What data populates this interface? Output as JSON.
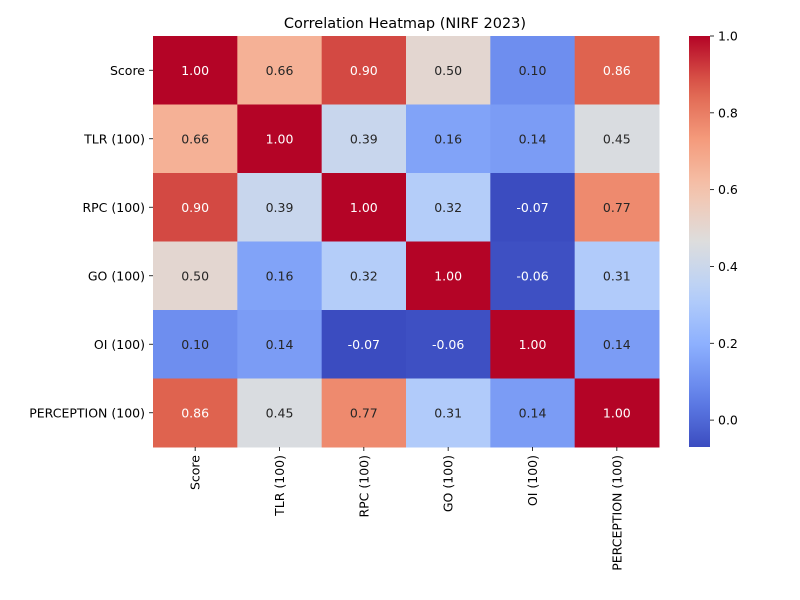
{
  "chart_data": {
    "type": "heatmap",
    "title": "Correlation Heatmap (NIRF 2023)",
    "xlabel": "",
    "ylabel": "",
    "row_labels": [
      "Score",
      "TLR (100)",
      "RPC (100)",
      "GO (100)",
      "OI (100)",
      "PERCEPTION (100)"
    ],
    "col_labels": [
      "Score",
      "TLR (100)",
      "RPC (100)",
      "GO (100)",
      "OI (100)",
      "PERCEPTION (100)"
    ],
    "values": [
      [
        1.0,
        0.66,
        0.9,
        0.5,
        0.1,
        0.86
      ],
      [
        0.66,
        1.0,
        0.39,
        0.16,
        0.14,
        0.45
      ],
      [
        0.9,
        0.39,
        1.0,
        0.32,
        -0.07,
        0.77
      ],
      [
        0.5,
        0.16,
        0.32,
        1.0,
        -0.06,
        0.31
      ],
      [
        0.1,
        0.14,
        -0.07,
        -0.06,
        1.0,
        0.14
      ],
      [
        0.86,
        0.45,
        0.77,
        0.31,
        0.14,
        1.0
      ]
    ],
    "annotation_format": "0.00",
    "colormap": "coolwarm",
    "color_range": [
      -0.07,
      1.0
    ],
    "colorbar_ticks": [
      "0.0",
      "0.2",
      "0.4",
      "0.6",
      "0.8",
      "1.0"
    ],
    "colors": {
      "low": "#3b4cc0",
      "mid": "#dddddd",
      "high": "#b40426",
      "text_light": "#ffffff",
      "text_dark": "#262626"
    }
  }
}
